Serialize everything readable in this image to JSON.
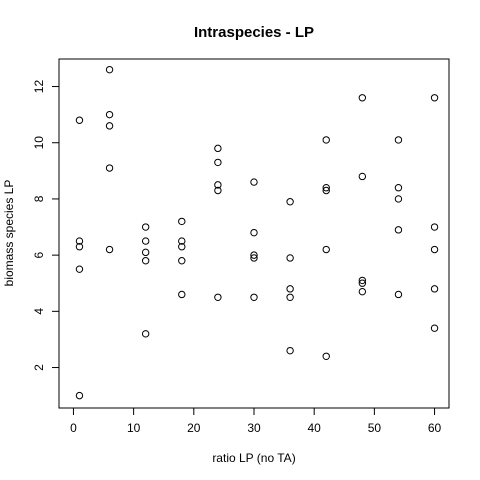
{
  "chart_data": {
    "type": "scatter",
    "title": "Intraspecies - LP",
    "xlabel": "ratio LP (no TA)",
    "ylabel": "biomass species LP",
    "xlim": [
      -2.4,
      62.4
    ],
    "ylim": [
      0.56,
      12.98
    ],
    "xticks": [
      0,
      10,
      20,
      30,
      40,
      50,
      60
    ],
    "yticks": [
      2,
      4,
      6,
      8,
      10,
      12
    ],
    "grid": false,
    "points": [
      {
        "x": 1,
        "y": 10.8
      },
      {
        "x": 1,
        "y": 6.5
      },
      {
        "x": 1,
        "y": 6.3
      },
      {
        "x": 1,
        "y": 5.5
      },
      {
        "x": 1,
        "y": 1.0
      },
      {
        "x": 6,
        "y": 12.6
      },
      {
        "x": 6,
        "y": 11.0
      },
      {
        "x": 6,
        "y": 10.6
      },
      {
        "x": 6,
        "y": 9.1
      },
      {
        "x": 6,
        "y": 6.2
      },
      {
        "x": 12,
        "y": 7.0
      },
      {
        "x": 12,
        "y": 6.5
      },
      {
        "x": 12,
        "y": 6.1
      },
      {
        "x": 12,
        "y": 5.8
      },
      {
        "x": 12,
        "y": 3.2
      },
      {
        "x": 18,
        "y": 7.2
      },
      {
        "x": 18,
        "y": 6.5
      },
      {
        "x": 18,
        "y": 6.3
      },
      {
        "x": 18,
        "y": 5.8
      },
      {
        "x": 18,
        "y": 4.6
      },
      {
        "x": 24,
        "y": 9.8
      },
      {
        "x": 24,
        "y": 9.3
      },
      {
        "x": 24,
        "y": 8.5
      },
      {
        "x": 24,
        "y": 8.3
      },
      {
        "x": 24,
        "y": 4.5
      },
      {
        "x": 30,
        "y": 8.6
      },
      {
        "x": 30,
        "y": 6.8
      },
      {
        "x": 30,
        "y": 6.0
      },
      {
        "x": 30,
        "y": 5.9
      },
      {
        "x": 30,
        "y": 4.5
      },
      {
        "x": 36,
        "y": 7.9
      },
      {
        "x": 36,
        "y": 5.9
      },
      {
        "x": 36,
        "y": 4.8
      },
      {
        "x": 36,
        "y": 4.5
      },
      {
        "x": 36,
        "y": 2.6
      },
      {
        "x": 42,
        "y": 10.1
      },
      {
        "x": 42,
        "y": 8.4
      },
      {
        "x": 42,
        "y": 8.3
      },
      {
        "x": 42,
        "y": 6.2
      },
      {
        "x": 42,
        "y": 2.4
      },
      {
        "x": 48,
        "y": 11.6
      },
      {
        "x": 48,
        "y": 8.8
      },
      {
        "x": 48,
        "y": 5.1
      },
      {
        "x": 48,
        "y": 5.0
      },
      {
        "x": 48,
        "y": 4.7
      },
      {
        "x": 54,
        "y": 10.1
      },
      {
        "x": 54,
        "y": 8.4
      },
      {
        "x": 54,
        "y": 8.0
      },
      {
        "x": 54,
        "y": 6.9
      },
      {
        "x": 54,
        "y": 4.6
      },
      {
        "x": 60,
        "y": 11.6
      },
      {
        "x": 60,
        "y": 7.0
      },
      {
        "x": 60,
        "y": 6.2
      },
      {
        "x": 60,
        "y": 4.8
      },
      {
        "x": 60,
        "y": 3.4
      }
    ]
  }
}
